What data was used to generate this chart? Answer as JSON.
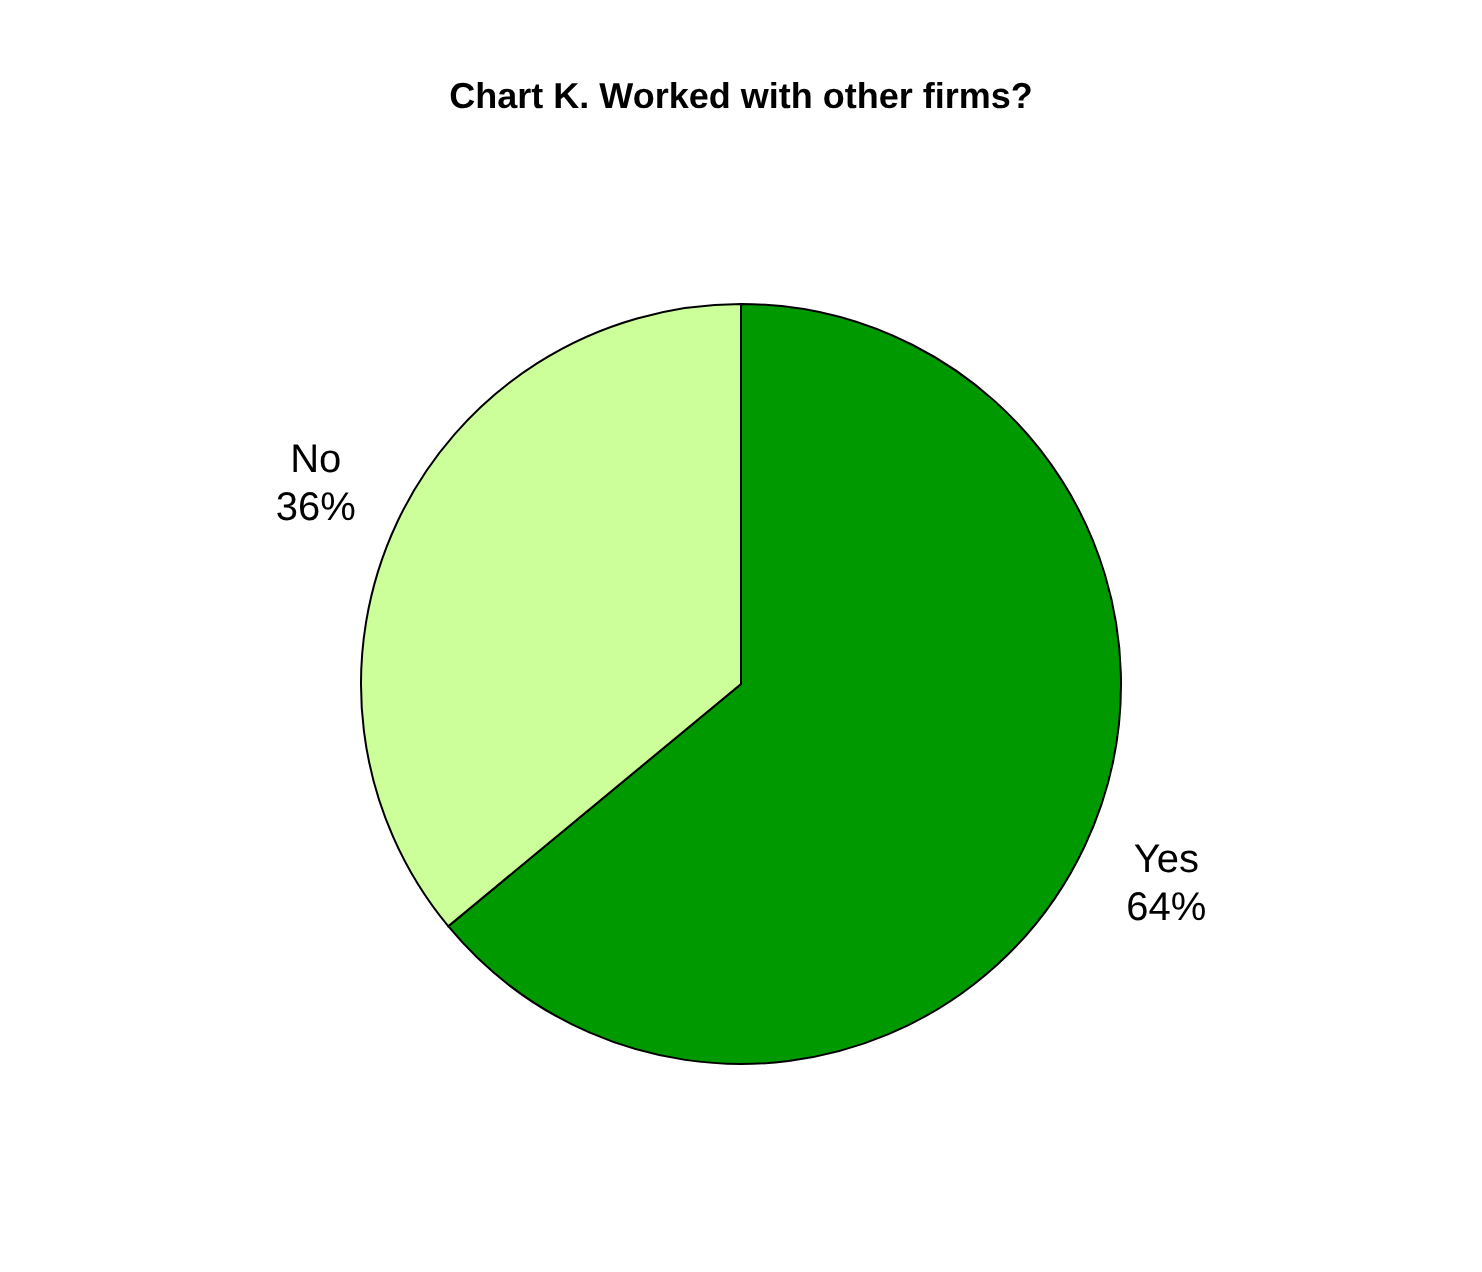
{
  "chart_data": {
    "type": "pie",
    "title": "Chart K. Worked with other firms?",
    "categories": [
      "Yes",
      "No"
    ],
    "values": [
      64,
      36
    ],
    "colors": [
      "#009900",
      "#ccff99"
    ],
    "value_labels": [
      "64%",
      "36%"
    ],
    "legend": false
  }
}
